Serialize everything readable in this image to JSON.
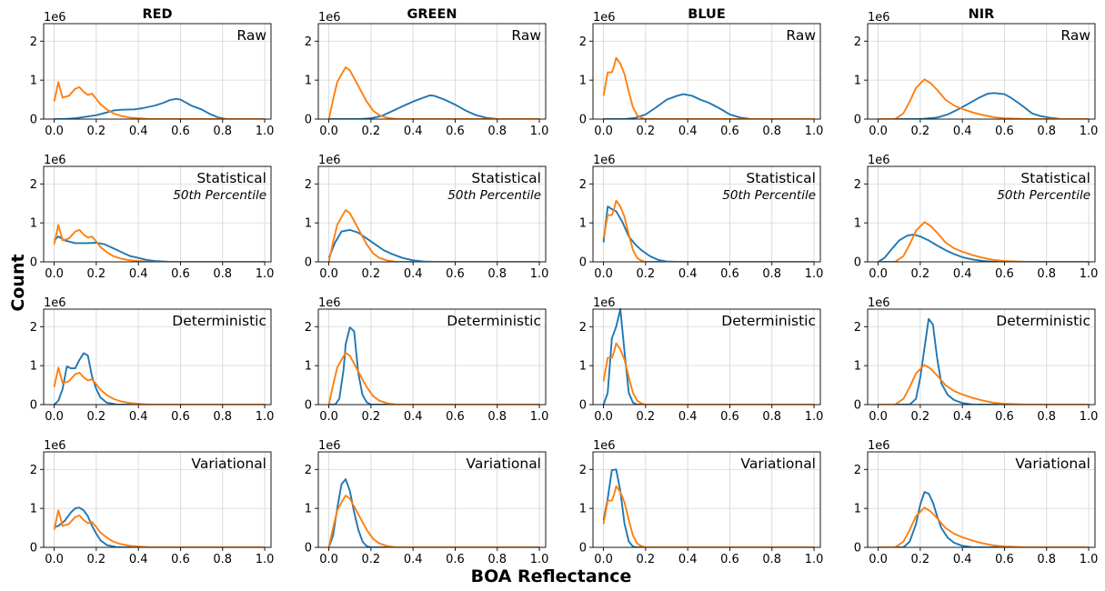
{
  "figure": {
    "ylabel": "Count",
    "xlabel": "BOA Reflectance"
  },
  "chart_data": {
    "type": "line",
    "columns": [
      "RED",
      "GREEN",
      "BLUE",
      "NIR"
    ],
    "rows": [
      {
        "label": "Raw",
        "sublabel": ""
      },
      {
        "label": "Statistical",
        "sublabel": "50th Percentile"
      },
      {
        "label": "Deterministic",
        "sublabel": ""
      },
      {
        "label": "Variational",
        "sublabel": ""
      }
    ],
    "x_ticks": [
      "0.0",
      "0.2",
      "0.4",
      "0.6",
      "0.8",
      "1.0"
    ],
    "y_ticks": [
      "0",
      "1",
      "2"
    ],
    "y_offset_label": "1e6",
    "xlim": [
      -0.05,
      1.03
    ],
    "ylim": [
      0,
      2.45
    ],
    "grid": true,
    "colors": {
      "blue_series": "#1f77b4",
      "orange_series": "#ff7f0e"
    },
    "reference_curves": {
      "RED": [
        [
          0.0,
          0.45
        ],
        [
          0.02,
          0.95
        ],
        [
          0.04,
          0.55
        ],
        [
          0.07,
          0.6
        ],
        [
          0.1,
          0.78
        ],
        [
          0.12,
          0.82
        ],
        [
          0.14,
          0.7
        ],
        [
          0.16,
          0.62
        ],
        [
          0.18,
          0.65
        ],
        [
          0.2,
          0.52
        ],
        [
          0.22,
          0.38
        ],
        [
          0.25,
          0.25
        ],
        [
          0.28,
          0.15
        ],
        [
          0.32,
          0.08
        ],
        [
          0.36,
          0.04
        ],
        [
          0.4,
          0.02
        ],
        [
          0.45,
          0.0
        ],
        [
          1.0,
          0.0
        ]
      ],
      "GREEN": [
        [
          0.0,
          0.0
        ],
        [
          0.02,
          0.5
        ],
        [
          0.04,
          0.95
        ],
        [
          0.06,
          1.15
        ],
        [
          0.08,
          1.33
        ],
        [
          0.1,
          1.25
        ],
        [
          0.12,
          1.05
        ],
        [
          0.15,
          0.75
        ],
        [
          0.18,
          0.45
        ],
        [
          0.21,
          0.22
        ],
        [
          0.24,
          0.1
        ],
        [
          0.28,
          0.03
        ],
        [
          0.32,
          0.0
        ],
        [
          1.0,
          0.0
        ]
      ],
      "BLUE": [
        [
          0.0,
          0.6
        ],
        [
          0.02,
          1.2
        ],
        [
          0.04,
          1.2
        ],
        [
          0.05,
          1.35
        ],
        [
          0.06,
          1.57
        ],
        [
          0.08,
          1.42
        ],
        [
          0.1,
          1.15
        ],
        [
          0.12,
          0.7
        ],
        [
          0.14,
          0.3
        ],
        [
          0.16,
          0.1
        ],
        [
          0.18,
          0.03
        ],
        [
          0.2,
          0.0
        ],
        [
          1.0,
          0.0
        ]
      ],
      "NIR": [
        [
          0.0,
          0.0
        ],
        [
          0.08,
          0.0
        ],
        [
          0.12,
          0.15
        ],
        [
          0.15,
          0.45
        ],
        [
          0.18,
          0.8
        ],
        [
          0.22,
          1.02
        ],
        [
          0.25,
          0.92
        ],
        [
          0.28,
          0.75
        ],
        [
          0.32,
          0.5
        ],
        [
          0.36,
          0.35
        ],
        [
          0.4,
          0.26
        ],
        [
          0.45,
          0.17
        ],
        [
          0.5,
          0.1
        ],
        [
          0.55,
          0.05
        ],
        [
          0.6,
          0.02
        ],
        [
          0.7,
          0.0
        ],
        [
          1.0,
          0.0
        ]
      ]
    },
    "model_curves": {
      "Raw": {
        "RED": [
          [
            0.0,
            0.0
          ],
          [
            0.05,
            0.0
          ],
          [
            0.1,
            0.02
          ],
          [
            0.15,
            0.06
          ],
          [
            0.2,
            0.1
          ],
          [
            0.25,
            0.17
          ],
          [
            0.28,
            0.22
          ],
          [
            0.32,
            0.24
          ],
          [
            0.38,
            0.25
          ],
          [
            0.42,
            0.28
          ],
          [
            0.48,
            0.35
          ],
          [
            0.52,
            0.42
          ],
          [
            0.55,
            0.49
          ],
          [
            0.58,
            0.52
          ],
          [
            0.6,
            0.5
          ],
          [
            0.62,
            0.44
          ],
          [
            0.65,
            0.35
          ],
          [
            0.7,
            0.25
          ],
          [
            0.74,
            0.13
          ],
          [
            0.78,
            0.04
          ],
          [
            0.82,
            0.0
          ],
          [
            1.0,
            0.0
          ]
        ],
        "GREEN": [
          [
            0.0,
            0.0
          ],
          [
            0.15,
            0.0
          ],
          [
            0.2,
            0.02
          ],
          [
            0.25,
            0.08
          ],
          [
            0.3,
            0.2
          ],
          [
            0.35,
            0.33
          ],
          [
            0.4,
            0.45
          ],
          [
            0.45,
            0.55
          ],
          [
            0.48,
            0.61
          ],
          [
            0.5,
            0.6
          ],
          [
            0.55,
            0.5
          ],
          [
            0.6,
            0.37
          ],
          [
            0.65,
            0.22
          ],
          [
            0.7,
            0.1
          ],
          [
            0.75,
            0.03
          ],
          [
            0.8,
            0.0
          ],
          [
            1.0,
            0.0
          ]
        ],
        "BLUE": [
          [
            0.0,
            0.0
          ],
          [
            0.1,
            0.0
          ],
          [
            0.15,
            0.03
          ],
          [
            0.2,
            0.12
          ],
          [
            0.25,
            0.3
          ],
          [
            0.3,
            0.5
          ],
          [
            0.35,
            0.6
          ],
          [
            0.38,
            0.64
          ],
          [
            0.42,
            0.6
          ],
          [
            0.46,
            0.5
          ],
          [
            0.5,
            0.42
          ],
          [
            0.55,
            0.28
          ],
          [
            0.6,
            0.12
          ],
          [
            0.65,
            0.04
          ],
          [
            0.7,
            0.0
          ],
          [
            1.0,
            0.0
          ]
        ],
        "NIR": [
          [
            0.0,
            0.0
          ],
          [
            0.2,
            0.0
          ],
          [
            0.28,
            0.04
          ],
          [
            0.33,
            0.12
          ],
          [
            0.38,
            0.25
          ],
          [
            0.43,
            0.4
          ],
          [
            0.48,
            0.55
          ],
          [
            0.52,
            0.65
          ],
          [
            0.55,
            0.67
          ],
          [
            0.58,
            0.65
          ],
          [
            0.6,
            0.64
          ],
          [
            0.63,
            0.55
          ],
          [
            0.67,
            0.4
          ],
          [
            0.7,
            0.28
          ],
          [
            0.73,
            0.15
          ],
          [
            0.77,
            0.08
          ],
          [
            0.82,
            0.03
          ],
          [
            0.87,
            0.0
          ],
          [
            1.0,
            0.0
          ]
        ]
      },
      "Statistical": {
        "RED": [
          [
            0.0,
            0.55
          ],
          [
            0.02,
            0.65
          ],
          [
            0.05,
            0.55
          ],
          [
            0.1,
            0.48
          ],
          [
            0.15,
            0.48
          ],
          [
            0.2,
            0.49
          ],
          [
            0.24,
            0.45
          ],
          [
            0.28,
            0.35
          ],
          [
            0.32,
            0.25
          ],
          [
            0.36,
            0.15
          ],
          [
            0.4,
            0.1
          ],
          [
            0.44,
            0.05
          ],
          [
            0.48,
            0.02
          ],
          [
            0.55,
            0.0
          ],
          [
            1.0,
            0.0
          ]
        ],
        "GREEN": [
          [
            0.0,
            0.1
          ],
          [
            0.03,
            0.5
          ],
          [
            0.06,
            0.78
          ],
          [
            0.1,
            0.82
          ],
          [
            0.14,
            0.75
          ],
          [
            0.18,
            0.6
          ],
          [
            0.22,
            0.45
          ],
          [
            0.26,
            0.3
          ],
          [
            0.3,
            0.2
          ],
          [
            0.35,
            0.1
          ],
          [
            0.4,
            0.04
          ],
          [
            0.45,
            0.01
          ],
          [
            0.5,
            0.0
          ],
          [
            1.0,
            0.0
          ]
        ],
        "BLUE": [
          [
            0.0,
            0.5
          ],
          [
            0.02,
            1.42
          ],
          [
            0.04,
            1.35
          ],
          [
            0.06,
            1.3
          ],
          [
            0.09,
            1.02
          ],
          [
            0.12,
            0.65
          ],
          [
            0.15,
            0.45
          ],
          [
            0.18,
            0.3
          ],
          [
            0.22,
            0.15
          ],
          [
            0.26,
            0.05
          ],
          [
            0.3,
            0.01
          ],
          [
            0.35,
            0.0
          ],
          [
            1.0,
            0.0
          ]
        ],
        "NIR": [
          [
            0.0,
            0.0
          ],
          [
            0.03,
            0.1
          ],
          [
            0.06,
            0.3
          ],
          [
            0.1,
            0.55
          ],
          [
            0.14,
            0.68
          ],
          [
            0.17,
            0.7
          ],
          [
            0.2,
            0.65
          ],
          [
            0.24,
            0.55
          ],
          [
            0.28,
            0.42
          ],
          [
            0.32,
            0.3
          ],
          [
            0.36,
            0.2
          ],
          [
            0.4,
            0.12
          ],
          [
            0.45,
            0.06
          ],
          [
            0.5,
            0.02
          ],
          [
            0.55,
            0.0
          ],
          [
            1.0,
            0.0
          ]
        ]
      },
      "Deterministic": {
        "RED": [
          [
            0.0,
            0.0
          ],
          [
            0.02,
            0.1
          ],
          [
            0.04,
            0.4
          ],
          [
            0.06,
            0.98
          ],
          [
            0.08,
            0.93
          ],
          [
            0.1,
            0.93
          ],
          [
            0.12,
            1.15
          ],
          [
            0.14,
            1.32
          ],
          [
            0.16,
            1.26
          ],
          [
            0.18,
            0.72
          ],
          [
            0.2,
            0.4
          ],
          [
            0.22,
            0.18
          ],
          [
            0.25,
            0.05
          ],
          [
            0.3,
            0.0
          ],
          [
            1.0,
            0.0
          ]
        ],
        "GREEN": [
          [
            0.0,
            0.0
          ],
          [
            0.03,
            0.0
          ],
          [
            0.05,
            0.15
          ],
          [
            0.07,
            0.9
          ],
          [
            0.08,
            1.55
          ],
          [
            0.1,
            1.98
          ],
          [
            0.12,
            1.88
          ],
          [
            0.14,
            0.8
          ],
          [
            0.16,
            0.25
          ],
          [
            0.18,
            0.06
          ],
          [
            0.2,
            0.0
          ],
          [
            1.0,
            0.0
          ]
        ],
        "BLUE": [
          [
            0.0,
            0.0
          ],
          [
            0.02,
            0.3
          ],
          [
            0.04,
            1.7
          ],
          [
            0.06,
            2.0
          ],
          [
            0.08,
            2.45
          ],
          [
            0.1,
            1.35
          ],
          [
            0.12,
            0.3
          ],
          [
            0.14,
            0.05
          ],
          [
            0.16,
            0.0
          ],
          [
            1.0,
            0.0
          ]
        ],
        "NIR": [
          [
            0.0,
            0.0
          ],
          [
            0.15,
            0.0
          ],
          [
            0.18,
            0.15
          ],
          [
            0.2,
            0.7
          ],
          [
            0.22,
            1.45
          ],
          [
            0.24,
            2.2
          ],
          [
            0.26,
            2.05
          ],
          [
            0.28,
            1.2
          ],
          [
            0.3,
            0.55
          ],
          [
            0.33,
            0.25
          ],
          [
            0.36,
            0.12
          ],
          [
            0.4,
            0.04
          ],
          [
            0.45,
            0.0
          ],
          [
            1.0,
            0.0
          ]
        ]
      },
      "Variational": {
        "RED": [
          [
            0.0,
            0.52
          ],
          [
            0.02,
            0.55
          ],
          [
            0.05,
            0.68
          ],
          [
            0.08,
            0.9
          ],
          [
            0.1,
            1.0
          ],
          [
            0.12,
            1.02
          ],
          [
            0.14,
            0.95
          ],
          [
            0.16,
            0.8
          ],
          [
            0.18,
            0.55
          ],
          [
            0.2,
            0.35
          ],
          [
            0.22,
            0.18
          ],
          [
            0.25,
            0.06
          ],
          [
            0.3,
            0.0
          ],
          [
            1.0,
            0.0
          ]
        ],
        "GREEN": [
          [
            0.0,
            0.0
          ],
          [
            0.02,
            0.3
          ],
          [
            0.04,
            1.0
          ],
          [
            0.06,
            1.62
          ],
          [
            0.08,
            1.75
          ],
          [
            0.1,
            1.45
          ],
          [
            0.12,
            0.9
          ],
          [
            0.14,
            0.45
          ],
          [
            0.16,
            0.15
          ],
          [
            0.18,
            0.03
          ],
          [
            0.2,
            0.0
          ],
          [
            1.0,
            0.0
          ]
        ],
        "BLUE": [
          [
            0.0,
            0.7
          ],
          [
            0.02,
            1.25
          ],
          [
            0.04,
            1.98
          ],
          [
            0.06,
            2.0
          ],
          [
            0.08,
            1.45
          ],
          [
            0.1,
            0.6
          ],
          [
            0.12,
            0.15
          ],
          [
            0.14,
            0.02
          ],
          [
            0.16,
            0.0
          ],
          [
            1.0,
            0.0
          ]
        ],
        "NIR": [
          [
            0.0,
            0.0
          ],
          [
            0.12,
            0.0
          ],
          [
            0.15,
            0.15
          ],
          [
            0.18,
            0.6
          ],
          [
            0.2,
            1.1
          ],
          [
            0.22,
            1.42
          ],
          [
            0.24,
            1.38
          ],
          [
            0.26,
            1.15
          ],
          [
            0.28,
            0.8
          ],
          [
            0.3,
            0.5
          ],
          [
            0.33,
            0.25
          ],
          [
            0.36,
            0.12
          ],
          [
            0.4,
            0.04
          ],
          [
            0.45,
            0.0
          ],
          [
            1.0,
            0.0
          ]
        ]
      }
    }
  }
}
